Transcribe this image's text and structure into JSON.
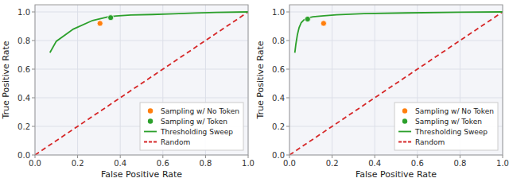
{
  "chart_data": [
    {
      "type": "line",
      "xlabel": "False Positive Rate",
      "ylabel": "True Positive Rate",
      "xlim": [
        0.0,
        1.0
      ],
      "ylim": [
        0.0,
        1.05
      ],
      "xticks": [
        {
          "value": 0.0,
          "label": "0.0"
        },
        0.2,
        0.4,
        0.6,
        0.8,
        {
          "value": 1.0,
          "label": "1.0"
        }
      ],
      "yticks": [
        {
          "value": 0.0,
          "label": "0.0"
        },
        0.2,
        0.4,
        0.6,
        0.8,
        {
          "value": 1.0,
          "label": "1.0"
        }
      ],
      "grid": true,
      "legend": "lower right",
      "series": [
        {
          "name": "Sampling w/ No Token",
          "type": "scatter",
          "marker": "circle",
          "color": "#ff7f0e",
          "x": [
            0.305
          ],
          "values": [
            0.92
          ]
        },
        {
          "name": "Sampling w/ Token",
          "type": "scatter",
          "marker": "circle",
          "color": "#2ca02c",
          "x": [
            0.355
          ],
          "values": [
            0.96
          ]
        },
        {
          "name": "Thresholding Sweep",
          "type": "line",
          "line_style": "solid",
          "color": "#2ca02c",
          "x": [
            0.07,
            0.1,
            0.18,
            0.27,
            0.34,
            0.38,
            0.45,
            0.55,
            0.65,
            0.75,
            0.85,
            1.0
          ],
          "values": [
            0.715,
            0.795,
            0.88,
            0.94,
            0.965,
            0.972,
            0.978,
            0.982,
            0.987,
            0.992,
            0.997,
            1.0
          ]
        },
        {
          "name": "Random",
          "type": "line",
          "line_style": "dashed",
          "color": "#d62728",
          "x": [
            0.0,
            1.0
          ],
          "values": [
            0.0,
            1.0
          ]
        }
      ]
    },
    {
      "type": "line",
      "xlabel": "False Positive Rate",
      "ylabel": "True Positive Rate",
      "xlim": [
        0.0,
        1.0
      ],
      "ylim": [
        0.0,
        1.05
      ],
      "xticks": [
        {
          "value": 0.0,
          "label": "0.0"
        },
        0.2,
        0.4,
        0.6,
        0.8,
        {
          "value": 1.0,
          "label": "1.0"
        }
      ],
      "yticks": [
        {
          "value": 0.0,
          "label": "0.0"
        },
        0.2,
        0.4,
        0.6,
        0.8,
        {
          "value": 1.0,
          "label": "1.0"
        }
      ],
      "grid": true,
      "legend": "lower right",
      "series": [
        {
          "name": "Sampling w/ No Token",
          "type": "scatter",
          "marker": "circle",
          "color": "#ff7f0e",
          "x": [
            0.16
          ],
          "values": [
            0.92
          ]
        },
        {
          "name": "Sampling w/ Token",
          "type": "scatter",
          "marker": "circle",
          "color": "#2ca02c",
          "x": [
            0.085
          ],
          "values": [
            0.95
          ]
        },
        {
          "name": "Thresholding Sweep",
          "type": "line",
          "line_style": "solid",
          "color": "#2ca02c",
          "x": [
            0.025,
            0.03,
            0.037,
            0.045,
            0.055,
            0.068,
            0.085,
            0.11,
            0.15,
            0.22,
            0.35,
            0.55,
            0.8,
            1.0
          ],
          "values": [
            0.715,
            0.775,
            0.84,
            0.89,
            0.925,
            0.945,
            0.958,
            0.966,
            0.972,
            0.98,
            0.988,
            0.993,
            0.998,
            1.0
          ]
        },
        {
          "name": "Random",
          "type": "line",
          "line_style": "dashed",
          "color": "#d62728",
          "x": [
            0.0,
            1.0
          ],
          "values": [
            0.0,
            1.0
          ]
        }
      ]
    }
  ]
}
